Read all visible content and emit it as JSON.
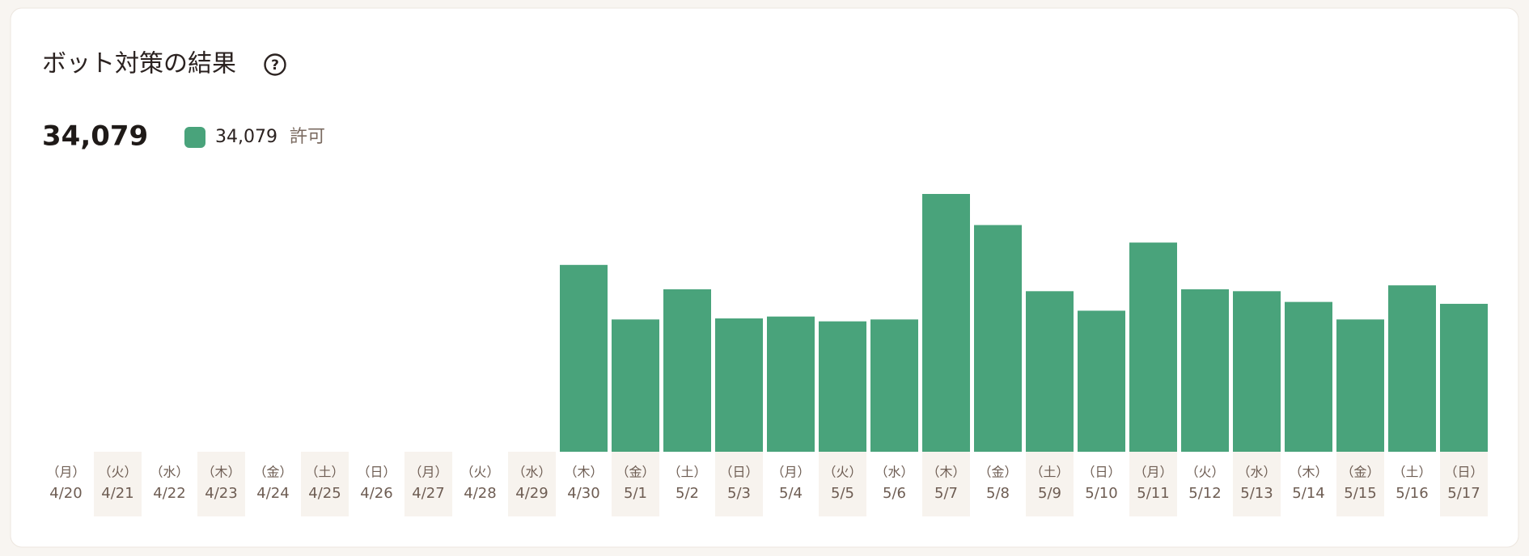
{
  "chart_data": {
    "type": "bar",
    "title": "ボット対策の結果",
    "total": {
      "value": 34079,
      "label": "34,079"
    },
    "weekdays": [
      "（月）",
      "（火）",
      "（水）",
      "（木）",
      "（金）",
      "（土）",
      "（日）",
      "（月）",
      "（火）",
      "（水）",
      "（木）",
      "（金）",
      "（土）",
      "（日）",
      "（月）",
      "（火）",
      "（水）",
      "（木）",
      "（金）",
      "（土）",
      "（日）",
      "（月）",
      "（火）",
      "（水）",
      "（木）",
      "（金）",
      "（土）",
      "（日）"
    ],
    "categories": [
      "4/20",
      "4/21",
      "4/22",
      "4/23",
      "4/24",
      "4/25",
      "4/26",
      "4/27",
      "4/28",
      "4/29",
      "4/30",
      "5/1",
      "5/2",
      "5/3",
      "5/4",
      "5/5",
      "5/6",
      "5/7",
      "5/8",
      "5/9",
      "5/10",
      "5/11",
      "5/12",
      "5/13",
      "5/14",
      "5/15",
      "5/16",
      "5/17"
    ],
    "series": [
      {
        "name": "許可",
        "color": "#49a37b",
        "values": [
          0,
          0,
          0,
          0,
          0,
          0,
          0,
          0,
          0,
          0,
          2175,
          1540,
          1891,
          1552,
          1574,
          1518,
          1540,
          3001,
          2639,
          1869,
          1642,
          2435,
          1891,
          1869,
          1744,
          1540,
          1937,
          1722
        ]
      }
    ]
  }
}
